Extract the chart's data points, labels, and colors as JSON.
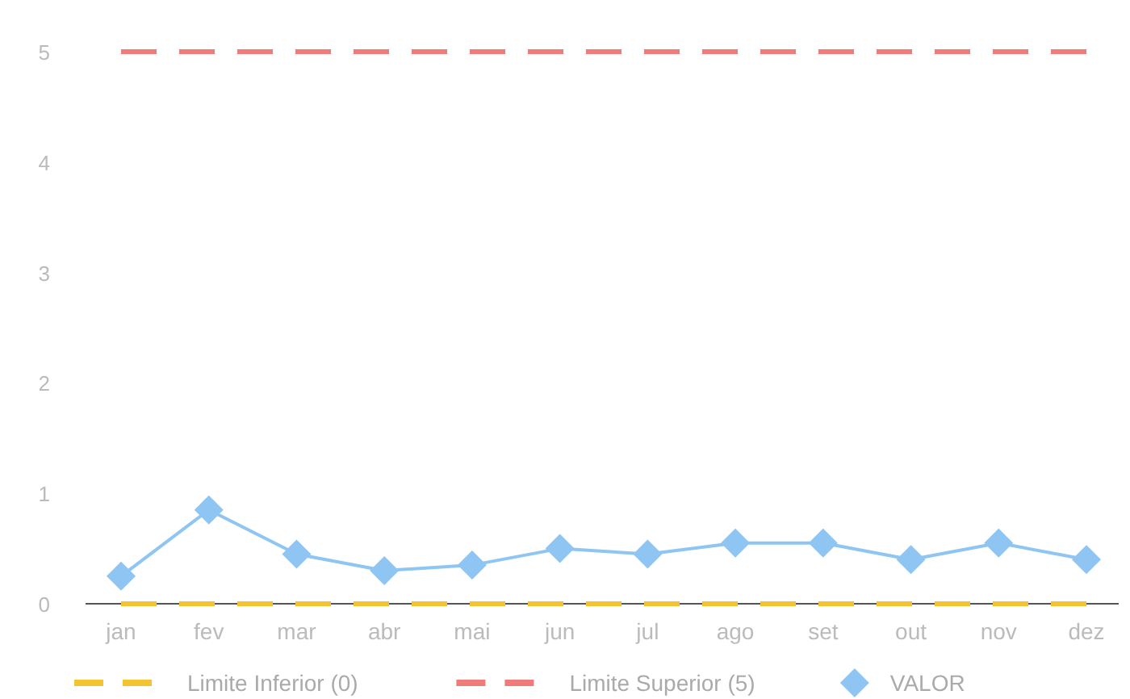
{
  "chart_data": {
    "type": "line",
    "categories": [
      "jan",
      "fev",
      "mar",
      "abr",
      "mai",
      "jun",
      "jul",
      "ago",
      "set",
      "out",
      "nov",
      "dez"
    ],
    "ylim": [
      0,
      5
    ],
    "yticks": [
      0,
      1,
      2,
      3,
      4,
      5
    ],
    "grid": false,
    "legend": "bottom",
    "series": [
      {
        "name": "Limite Inferior (0)",
        "color": "#f4c430",
        "values": [
          0,
          0,
          0,
          0,
          0,
          0,
          0,
          0,
          0,
          0,
          0,
          0
        ],
        "line_style": "dashed",
        "marker": "none"
      },
      {
        "name": "Limite Superior (5)",
        "color": "#f07b78",
        "values": [
          5,
          5,
          5,
          5,
          5,
          5,
          5,
          5,
          5,
          5,
          5,
          5
        ],
        "line_style": "dashed",
        "marker": "none"
      },
      {
        "name": "VALOR",
        "color": "#8ec5f2",
        "values": [
          0.25,
          0.85,
          0.45,
          0.3,
          0.35,
          0.5,
          0.45,
          0.55,
          0.55,
          0.4,
          0.55,
          0.4
        ],
        "line_style": "solid",
        "marker": "diamond"
      }
    ]
  }
}
